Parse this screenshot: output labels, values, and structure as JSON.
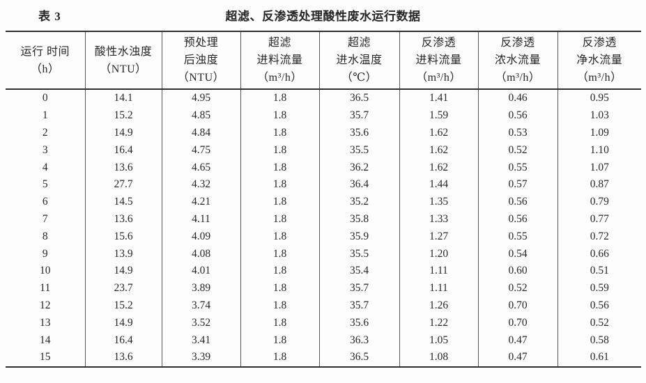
{
  "caption": {
    "label": "表 3",
    "title": "超滤、反渗透处理酸性废水运行数据"
  },
  "table": {
    "columns": [
      [
        "运行 时间",
        "（h）"
      ],
      [
        "酸性水浊度",
        "（NTU）"
      ],
      [
        "预处理",
        "后浊度",
        "（NTU）"
      ],
      [
        "超滤",
        "进料流量",
        "（m³/h）"
      ],
      [
        "超滤",
        "进水温度",
        "（℃）"
      ],
      [
        "反渗透",
        "进料流量",
        "（m³/h）"
      ],
      [
        "反渗透",
        "浓水流量",
        "（m³/h）"
      ],
      [
        "反渗透",
        "净水流量",
        "（m³/h）"
      ]
    ],
    "rows": [
      [
        "0",
        "14.1",
        "4.95",
        "1.8",
        "36.5",
        "1.41",
        "0.46",
        "0.95"
      ],
      [
        "1",
        "15.2",
        "4.85",
        "1.8",
        "35.7",
        "1.59",
        "0.56",
        "1.03"
      ],
      [
        "2",
        "14.9",
        "4.84",
        "1.8",
        "35.6",
        "1.62",
        "0.53",
        "1.09"
      ],
      [
        "3",
        "16.4",
        "4.75",
        "1.8",
        "35.5",
        "1.62",
        "0.52",
        "1.10"
      ],
      [
        "4",
        "13.6",
        "4.65",
        "1.8",
        "36.2",
        "1.62",
        "0.55",
        "1.07"
      ],
      [
        "5",
        "27.7",
        "4.32",
        "1.8",
        "36.4",
        "1.44",
        "0.57",
        "0.87"
      ],
      [
        "6",
        "14.5",
        "4.21",
        "1.8",
        "35.2",
        "1.35",
        "0.56",
        "0.79"
      ],
      [
        "7",
        "13.6",
        "4.11",
        "1.8",
        "35.8",
        "1.33",
        "0.56",
        "0.77"
      ],
      [
        "8",
        "15.6",
        "4.09",
        "1.8",
        "35.9",
        "1.27",
        "0.55",
        "0.72"
      ],
      [
        "9",
        "13.9",
        "4.08",
        "1.8",
        "35.5",
        "1.20",
        "0.54",
        "0.66"
      ],
      [
        "10",
        "14.9",
        "4.01",
        "1.8",
        "35.4",
        "1.11",
        "0.60",
        "0.51"
      ],
      [
        "11",
        "23.7",
        "3.89",
        "1.8",
        "35.7",
        "1.11",
        "0.52",
        "0.59"
      ],
      [
        "12",
        "15.2",
        "3.74",
        "1.8",
        "35.7",
        "1.26",
        "0.70",
        "0.56"
      ],
      [
        "13",
        "14.9",
        "3.52",
        "1.8",
        "35.6",
        "1.22",
        "0.70",
        "0.52"
      ],
      [
        "14",
        "16.4",
        "3.41",
        "1.8",
        "36.3",
        "1.05",
        "0.47",
        "0.58"
      ],
      [
        "15",
        "13.6",
        "3.39",
        "1.8",
        "36.5",
        "1.08",
        "0.47",
        "0.61"
      ]
    ]
  }
}
